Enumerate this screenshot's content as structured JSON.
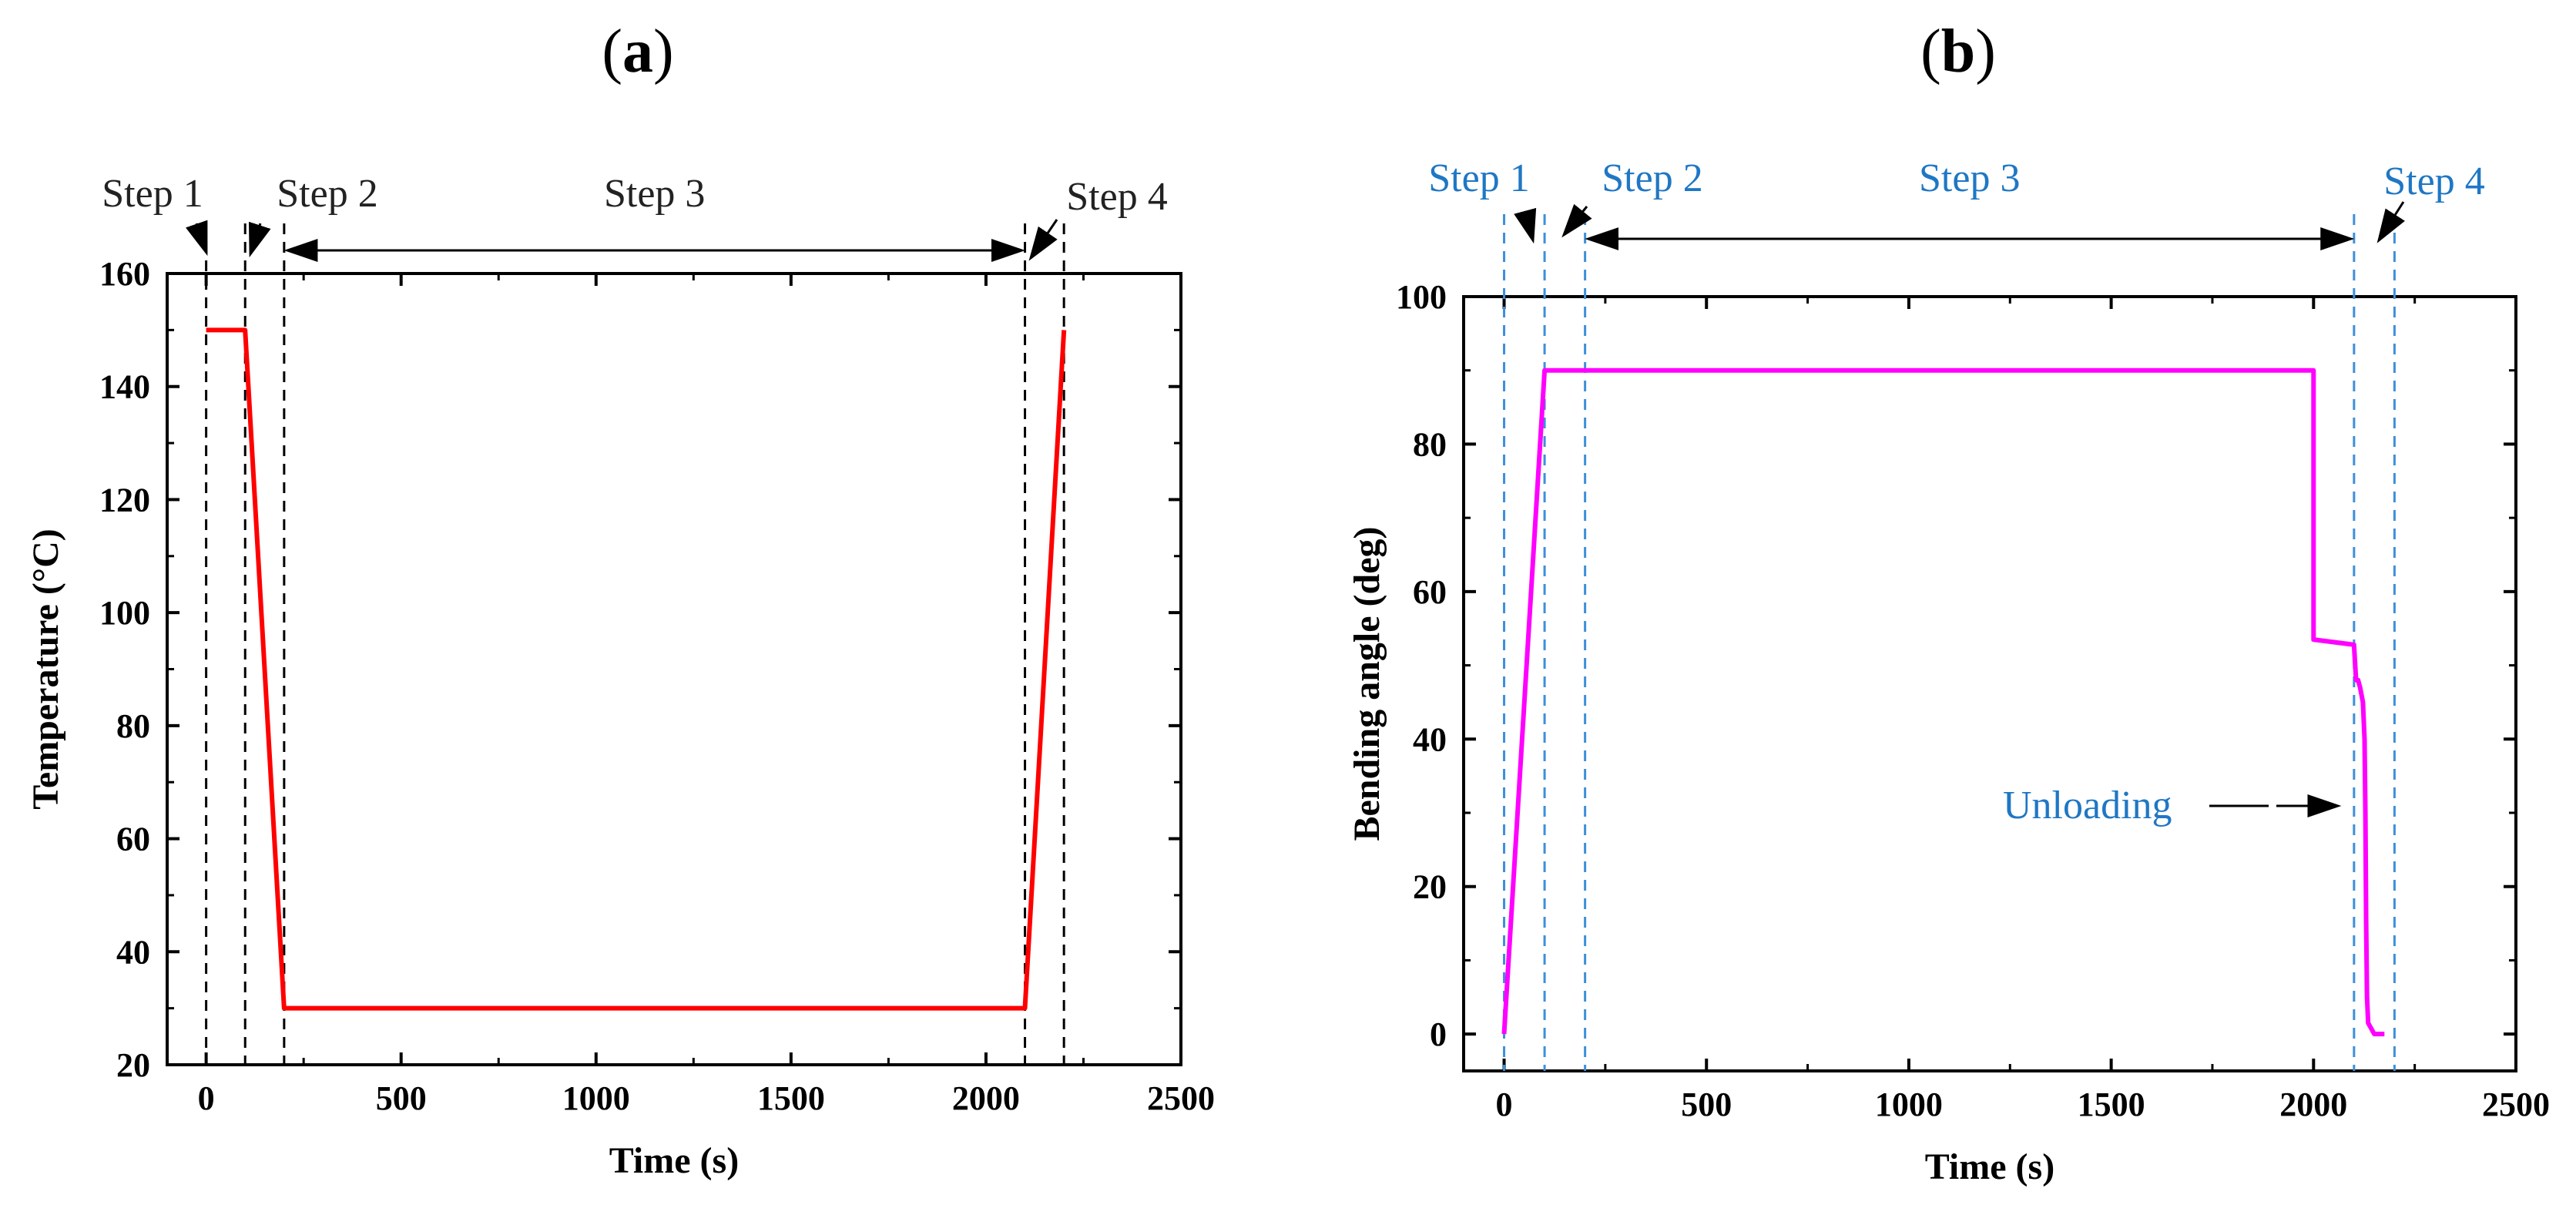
{
  "panels": [
    {
      "label_open": "(",
      "label_letter": "a",
      "label_close": ")"
    },
    {
      "label_open": "(",
      "label_letter": "b",
      "label_close": ")"
    }
  ],
  "colors": {
    "temperature_line": "#ff0000",
    "bending_line": "#ff00ff",
    "step_text_b": "#1f77c4",
    "step_lines_b": "#3d8fd9",
    "step_lines_a": "#000000",
    "step_text_a": "#222222"
  },
  "chart_data": [
    {
      "type": "line",
      "title": "(a)",
      "xlabel": "Time (s)",
      "ylabel": "Temperature (°C)",
      "xlim": [
        -100,
        2500
      ],
      "ylim": [
        20,
        160
      ],
      "xticks": [
        0,
        500,
        1000,
        1500,
        2000,
        2500
      ],
      "yticks": [
        20,
        40,
        60,
        80,
        100,
        120,
        140,
        160
      ],
      "grid": false,
      "series": [
        {
          "name": "Temperature",
          "x": [
            0,
            100,
            200,
            2100,
            2200
          ],
          "y": [
            150,
            150,
            30,
            30,
            150
          ]
        }
      ],
      "step_boundaries": [
        0,
        100,
        200,
        2100,
        2200
      ],
      "step_labels": [
        "Step 1",
        "Step 2",
        "Step 3",
        "Step 4"
      ],
      "annotations": [
        {
          "text": "Step 1",
          "type": "arrow",
          "x": 50
        },
        {
          "text": "Step 2",
          "type": "arrow",
          "x": 150
        },
        {
          "text": "Step 3",
          "type": "double-arrow",
          "x_from": 200,
          "x_to": 2100
        },
        {
          "text": "Step 4",
          "type": "arrow",
          "x": 2150
        }
      ]
    },
    {
      "type": "line",
      "title": "(b)",
      "xlabel": "Time (s)",
      "ylabel": "Bending angle (deg)",
      "xlim": [
        -100,
        2500
      ],
      "ylim": [
        -5,
        100
      ],
      "xticks": [
        0,
        500,
        1000,
        1500,
        2000,
        2500
      ],
      "yticks": [
        0,
        20,
        40,
        60,
        80,
        100
      ],
      "grid": false,
      "series": [
        {
          "name": "Bending angle",
          "x": [
            0,
            100,
            100,
            2000,
            2000,
            2100,
            2105,
            2110,
            2115,
            2122,
            2126,
            2128,
            2130,
            2132,
            2135,
            2150,
            2150,
            2175
          ],
          "y": [
            0,
            90,
            90,
            90,
            53.5,
            52.8,
            48,
            48,
            47,
            45,
            40,
            30,
            15,
            5,
            1.5,
            0,
            0,
            0
          ]
        }
      ],
      "step_boundaries": [
        0,
        100,
        200,
        2100,
        2200
      ],
      "step_labels": [
        "Step 1",
        "Step 2",
        "Step 3",
        "Step 4"
      ],
      "annotations": [
        {
          "text": "Step 1",
          "type": "arrow",
          "x": 50
        },
        {
          "text": "Step 2",
          "type": "arrow",
          "x": 150
        },
        {
          "text": "Step 3",
          "type": "double-arrow",
          "x_from": 200,
          "x_to": 2100
        },
        {
          "text": "Step 4",
          "type": "arrow",
          "x": 2150
        },
        {
          "text": "Unloading",
          "type": "arrow",
          "x": 2010,
          "y": 31
        }
      ]
    }
  ]
}
